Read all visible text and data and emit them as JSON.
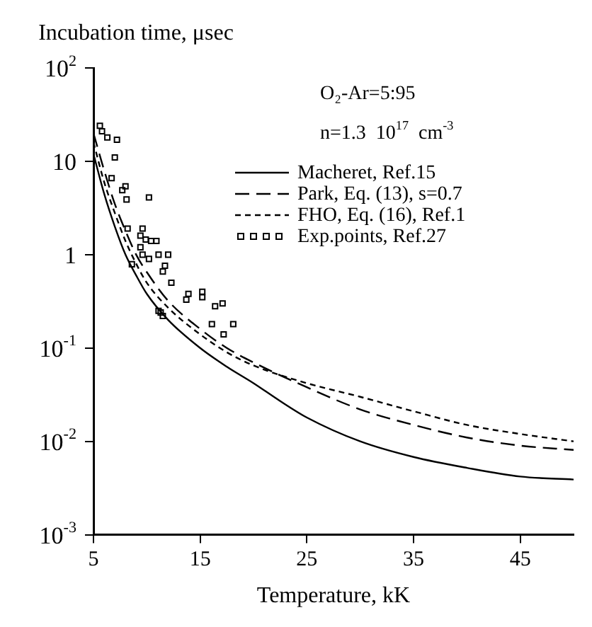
{
  "chart_data": {
    "type": "line",
    "ylabel": "Incubation time, μsec",
    "xlabel": "Temperature, kK",
    "log": "y",
    "xlim": [
      5,
      50
    ],
    "xticks": [
      5,
      15,
      25,
      35,
      45
    ],
    "ylim": [
      0.001,
      100
    ],
    "yticks": [
      {
        "value": 100,
        "label": "10$^{2}$"
      },
      10,
      1,
      {
        "value": 0.1,
        "label": "10$^{-1}$"
      },
      {
        "value": 0.01,
        "label": "10$^{-2}$"
      },
      {
        "value": 0.001,
        "label": "10$^{-3}$"
      }
    ],
    "annotations": [
      "O₂-Ar=5:95",
      "n=1.3  10$^{17}$  cm$^{-3}$"
    ],
    "legend": "top right",
    "series": [
      {
        "name": "Macheret, Ref.15",
        "type": "line",
        "line_style": "solid",
        "color": "#000000",
        "x": [
          5,
          6,
          7,
          8,
          9,
          10,
          12,
          15,
          17.5,
          20,
          22.5,
          25,
          30,
          35,
          40,
          45,
          50
        ],
        "values": [
          12,
          4.5,
          2.0,
          1.0,
          0.6,
          0.38,
          0.2,
          0.1,
          0.063,
          0.042,
          0.027,
          0.018,
          0.01,
          0.0068,
          0.0052,
          0.0042,
          0.0039
        ]
      },
      {
        "name": "Park, Eq. (13), s=0.7",
        "type": "line",
        "line_style": "dashed",
        "color": "#000000",
        "x": [
          5,
          6,
          7,
          8,
          9,
          10,
          12,
          15,
          17.5,
          20,
          25,
          30,
          35,
          40,
          45,
          50
        ],
        "values": [
          20,
          8,
          3.5,
          1.8,
          1.0,
          0.65,
          0.32,
          0.16,
          0.1,
          0.07,
          0.038,
          0.022,
          0.015,
          0.011,
          0.009,
          0.0081
        ]
      },
      {
        "name": "FHO, Eq. (16), Ref.1",
        "type": "line",
        "line_style": "dotted",
        "color": "#000000",
        "x": [
          5,
          6,
          7,
          8,
          9,
          10,
          12,
          15,
          17.5,
          20,
          25,
          30,
          35,
          40,
          45,
          50
        ],
        "values": [
          16,
          6,
          2.8,
          1.4,
          0.8,
          0.5,
          0.27,
          0.14,
          0.09,
          0.065,
          0.042,
          0.03,
          0.021,
          0.015,
          0.012,
          0.01
        ]
      },
      {
        "name": "Exp.points, Ref.27",
        "type": "scatter",
        "marker": "square",
        "color": "#000000",
        "x": [
          5.6,
          5.8,
          6.3,
          7.2,
          7.0,
          6.7,
          8.0,
          7.7,
          8.1,
          10.2,
          8.2,
          9.6,
          9.4,
          9.9,
          10.4,
          10.9,
          9.4,
          9.6,
          11.1,
          12.0,
          10.2,
          8.6,
          11.7,
          11.5,
          12.3,
          13.9,
          13.7,
          15.2,
          15.2,
          17.1,
          16.4,
          16.1,
          18.1,
          17.2,
          11.1,
          11.3,
          11.5
        ],
        "values": [
          24,
          21,
          18,
          17,
          11,
          6.6,
          5.4,
          4.9,
          3.9,
          4.1,
          1.9,
          1.9,
          1.6,
          1.45,
          1.4,
          1.4,
          1.2,
          1.0,
          1.0,
          1.0,
          0.9,
          0.79,
          0.76,
          0.66,
          0.5,
          0.38,
          0.33,
          0.4,
          0.35,
          0.3,
          0.28,
          0.18,
          0.18,
          0.14,
          0.25,
          0.24,
          0.22
        ]
      }
    ]
  }
}
